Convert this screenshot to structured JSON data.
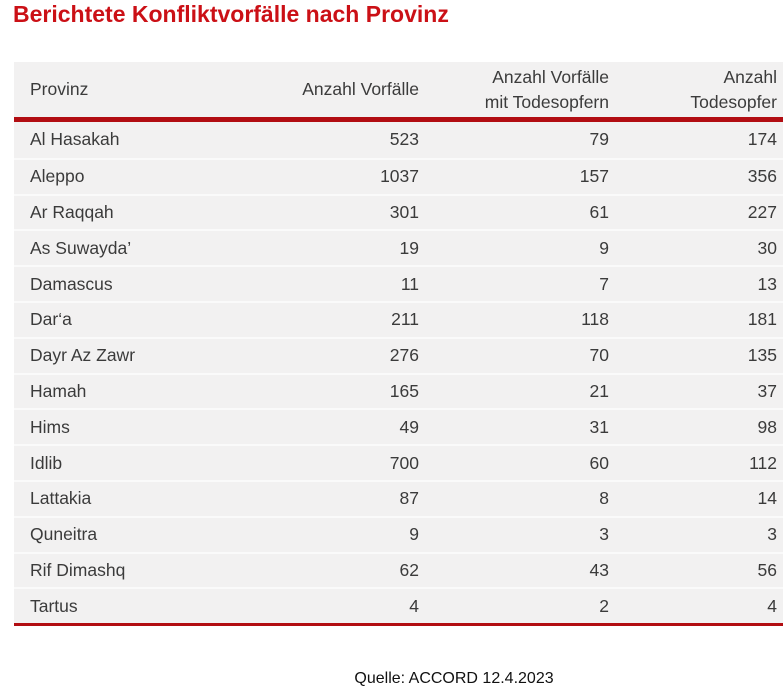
{
  "title": "Berichtete Konfliktvorfälle nach Provinz",
  "header": {
    "provinz": "Provinz",
    "anzahl_vorfaelle": "Anzahl Vorfälle",
    "anzahl_vorfaelle_mit_todesopfern": "Anzahl Vorfälle\nmit Todesopfern",
    "anzahl_todesopfer": "Anzahl\nTodesopfer"
  },
  "chart_data": {
    "type": "table",
    "title": "Berichtete Konfliktvorfälle nach Provinz",
    "columns": [
      "Provinz",
      "Anzahl Vorfälle",
      "Anzahl Vorfälle mit Todesopfern",
      "Anzahl Todesopfer"
    ],
    "rows": [
      [
        "Al Hasakah",
        523,
        79,
        174
      ],
      [
        "Aleppo",
        1037,
        157,
        356
      ],
      [
        "Ar Raqqah",
        301,
        61,
        227
      ],
      [
        "As Suwayda’",
        19,
        9,
        30
      ],
      [
        "Damascus",
        11,
        7,
        13
      ],
      [
        "Dar‘a",
        211,
        118,
        181
      ],
      [
        "Dayr Az Zawr",
        276,
        70,
        135
      ],
      [
        "Hamah",
        165,
        21,
        37
      ],
      [
        "Hims",
        49,
        31,
        98
      ],
      [
        "Idlib",
        700,
        60,
        112
      ],
      [
        "Lattakia",
        87,
        8,
        14
      ],
      [
        "Quneitra",
        9,
        3,
        3
      ],
      [
        "Rif Dimashq",
        62,
        43,
        56
      ],
      [
        "Tartus",
        4,
        2,
        4
      ]
    ],
    "source": "Quelle: ACCORD 12.4.2023"
  },
  "colors": {
    "accent_red": "#cb1016",
    "rule_red": "#b20d12",
    "table_bg": "#f2f1f1",
    "text": "#3b3b3b",
    "row_separator": "#fafafa"
  }
}
